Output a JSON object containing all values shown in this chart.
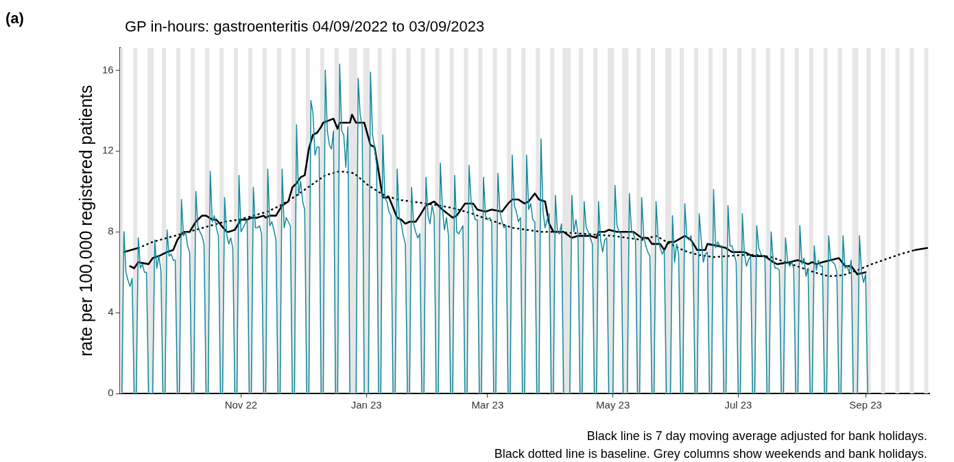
{
  "chart_data": {
    "type": "line",
    "title": "GP in-hours: gastroenteritis 04/09/2022 to 03/09/2023",
    "ylabel": "rate per 100,000 registered patients",
    "annotations": [
      "(a)",
      "Black line is 7 day moving average adjusted for bank holidays.",
      "Black dotted line is baseline. Grey columns show weekends and bank holidays."
    ],
    "xlim": [
      "2022-09-03",
      "2023-10-02"
    ],
    "xticks": [
      {
        "value": "2022-11-01",
        "label": "Nov 22"
      },
      {
        "value": "2023-01-01",
        "label": "Jan 23"
      },
      {
        "value": "2023-03-01",
        "label": "Mar 23"
      },
      {
        "value": "2023-05-01",
        "label": "May 23"
      },
      {
        "value": "2023-07-01",
        "label": "Jul 23"
      },
      {
        "value": "2023-09-01",
        "label": "Sep 23"
      }
    ],
    "ylim": [
      0,
      17.1
    ],
    "yticks": [
      0,
      4,
      8,
      12,
      16
    ],
    "grid": false,
    "legend": false,
    "marker": "none",
    "bands": [
      {
        "axis": "x",
        "from": "2022-09-03",
        "to": "2022-09-04",
        "color": "#e6e6e6"
      },
      {
        "axis": "x",
        "from": "2022-09-10",
        "to": "2022-09-11",
        "color": "#e6e6e6"
      },
      {
        "axis": "x",
        "from": "2022-09-17",
        "to": "2022-09-19",
        "color": "#e6e6e6"
      },
      {
        "axis": "x",
        "from": "2022-09-24",
        "to": "2022-09-25",
        "color": "#e6e6e6"
      },
      {
        "axis": "x",
        "from": "2022-10-01",
        "to": "2022-10-02",
        "color": "#e6e6e6"
      },
      {
        "axis": "x",
        "from": "2022-10-08",
        "to": "2022-10-09",
        "color": "#e6e6e6"
      },
      {
        "axis": "x",
        "from": "2022-10-15",
        "to": "2022-10-16",
        "color": "#e6e6e6"
      },
      {
        "axis": "x",
        "from": "2022-10-22",
        "to": "2022-10-23",
        "color": "#e6e6e6"
      },
      {
        "axis": "x",
        "from": "2022-10-29",
        "to": "2022-10-30",
        "color": "#e6e6e6"
      },
      {
        "axis": "x",
        "from": "2022-11-05",
        "to": "2022-11-06",
        "color": "#e6e6e6"
      },
      {
        "axis": "x",
        "from": "2022-11-12",
        "to": "2022-11-13",
        "color": "#e6e6e6"
      },
      {
        "axis": "x",
        "from": "2022-11-19",
        "to": "2022-11-20",
        "color": "#e6e6e6"
      },
      {
        "axis": "x",
        "from": "2022-11-26",
        "to": "2022-11-27",
        "color": "#e6e6e6"
      },
      {
        "axis": "x",
        "from": "2022-12-03",
        "to": "2022-12-04",
        "color": "#e6e6e6"
      },
      {
        "axis": "x",
        "from": "2022-12-10",
        "to": "2022-12-11",
        "color": "#e6e6e6"
      },
      {
        "axis": "x",
        "from": "2022-12-17",
        "to": "2022-12-18",
        "color": "#e6e6e6"
      },
      {
        "axis": "x",
        "from": "2022-12-24",
        "to": "2022-12-27",
        "color": "#e6e6e6"
      },
      {
        "axis": "x",
        "from": "2022-12-31",
        "to": "2023-01-02",
        "color": "#e6e6e6"
      },
      {
        "axis": "x",
        "from": "2023-01-07",
        "to": "2023-01-08",
        "color": "#e6e6e6"
      },
      {
        "axis": "x",
        "from": "2023-01-14",
        "to": "2023-01-15",
        "color": "#e6e6e6"
      },
      {
        "axis": "x",
        "from": "2023-01-21",
        "to": "2023-01-22",
        "color": "#e6e6e6"
      },
      {
        "axis": "x",
        "from": "2023-01-28",
        "to": "2023-01-29",
        "color": "#e6e6e6"
      },
      {
        "axis": "x",
        "from": "2023-02-04",
        "to": "2023-02-05",
        "color": "#e6e6e6"
      },
      {
        "axis": "x",
        "from": "2023-02-11",
        "to": "2023-02-12",
        "color": "#e6e6e6"
      },
      {
        "axis": "x",
        "from": "2023-02-18",
        "to": "2023-02-19",
        "color": "#e6e6e6"
      },
      {
        "axis": "x",
        "from": "2023-02-25",
        "to": "2023-02-26",
        "color": "#e6e6e6"
      },
      {
        "axis": "x",
        "from": "2023-03-04",
        "to": "2023-03-05",
        "color": "#e6e6e6"
      },
      {
        "axis": "x",
        "from": "2023-03-11",
        "to": "2023-03-12",
        "color": "#e6e6e6"
      },
      {
        "axis": "x",
        "from": "2023-03-18",
        "to": "2023-03-19",
        "color": "#e6e6e6"
      },
      {
        "axis": "x",
        "from": "2023-03-25",
        "to": "2023-03-26",
        "color": "#e6e6e6"
      },
      {
        "axis": "x",
        "from": "2023-04-01",
        "to": "2023-04-02",
        "color": "#e6e6e6"
      },
      {
        "axis": "x",
        "from": "2023-04-07",
        "to": "2023-04-10",
        "color": "#e6e6e6"
      },
      {
        "axis": "x",
        "from": "2023-04-15",
        "to": "2023-04-16",
        "color": "#e6e6e6"
      },
      {
        "axis": "x",
        "from": "2023-04-22",
        "to": "2023-04-23",
        "color": "#e6e6e6"
      },
      {
        "axis": "x",
        "from": "2023-04-29",
        "to": "2023-05-01",
        "color": "#e6e6e6"
      },
      {
        "axis": "x",
        "from": "2023-05-06",
        "to": "2023-05-08",
        "color": "#e6e6e6"
      },
      {
        "axis": "x",
        "from": "2023-05-13",
        "to": "2023-05-14",
        "color": "#e6e6e6"
      },
      {
        "axis": "x",
        "from": "2023-05-20",
        "to": "2023-05-21",
        "color": "#e6e6e6"
      },
      {
        "axis": "x",
        "from": "2023-05-27",
        "to": "2023-05-29",
        "color": "#e6e6e6"
      },
      {
        "axis": "x",
        "from": "2023-06-03",
        "to": "2023-06-04",
        "color": "#e6e6e6"
      },
      {
        "axis": "x",
        "from": "2023-06-10",
        "to": "2023-06-11",
        "color": "#e6e6e6"
      },
      {
        "axis": "x",
        "from": "2023-06-17",
        "to": "2023-06-18",
        "color": "#e6e6e6"
      },
      {
        "axis": "x",
        "from": "2023-06-24",
        "to": "2023-06-25",
        "color": "#e6e6e6"
      },
      {
        "axis": "x",
        "from": "2023-07-01",
        "to": "2023-07-02",
        "color": "#e6e6e6"
      },
      {
        "axis": "x",
        "from": "2023-07-08",
        "to": "2023-07-09",
        "color": "#e6e6e6"
      },
      {
        "axis": "x",
        "from": "2023-07-15",
        "to": "2023-07-16",
        "color": "#e6e6e6"
      },
      {
        "axis": "x",
        "from": "2023-07-22",
        "to": "2023-07-23",
        "color": "#e6e6e6"
      },
      {
        "axis": "x",
        "from": "2023-07-29",
        "to": "2023-07-30",
        "color": "#e6e6e6"
      },
      {
        "axis": "x",
        "from": "2023-08-05",
        "to": "2023-08-06",
        "color": "#e6e6e6"
      },
      {
        "axis": "x",
        "from": "2023-08-12",
        "to": "2023-08-13",
        "color": "#e6e6e6"
      },
      {
        "axis": "x",
        "from": "2023-08-19",
        "to": "2023-08-20",
        "color": "#e6e6e6"
      },
      {
        "axis": "x",
        "from": "2023-08-26",
        "to": "2023-08-28",
        "color": "#e6e6e6"
      },
      {
        "axis": "x",
        "from": "2023-09-02",
        "to": "2023-09-03",
        "color": "#e6e6e6"
      },
      {
        "axis": "x",
        "from": "2023-09-09",
        "to": "2023-09-10",
        "color": "#e6e6e6"
      },
      {
        "axis": "x",
        "from": "2023-09-16",
        "to": "2023-09-17",
        "color": "#e6e6e6"
      },
      {
        "axis": "x",
        "from": "2023-09-23",
        "to": "2023-09-24",
        "color": "#e6e6e6"
      },
      {
        "axis": "x",
        "from": "2023-09-30",
        "to": "2023-10-01",
        "color": "#e6e6e6"
      }
    ],
    "series": [
      {
        "type": "line",
        "color": "#11879c",
        "line_style": "solid",
        "x": [
          "2022-09-04",
          "2022-09-05",
          "2022-09-06",
          "2022-09-07",
          "2022-09-08",
          "2022-09-09",
          "2022-09-10",
          "2022-09-11",
          "2022-09-12",
          "2022-09-13",
          "2022-09-14",
          "2022-09-15",
          "2022-09-16",
          "2022-09-17",
          "2022-09-18",
          "2022-09-19",
          "2022-09-20",
          "2022-09-21",
          "2022-09-22",
          "2022-09-23",
          "2022-09-24",
          "2022-09-25",
          "2022-09-26",
          "2022-09-27",
          "2022-09-28",
          "2022-09-29",
          "2022-09-30",
          "2022-10-01",
          "2022-10-02",
          "2022-10-03",
          "2022-10-04",
          "2022-10-05",
          "2022-10-06",
          "2022-10-07",
          "2022-10-08",
          "2022-10-09",
          "2022-10-10",
          "2022-10-11",
          "2022-10-12",
          "2022-10-13",
          "2022-10-14",
          "2022-10-15",
          "2022-10-16",
          "2022-10-17",
          "2022-10-18",
          "2022-10-19",
          "2022-10-20",
          "2022-10-21",
          "2022-10-22",
          "2022-10-23",
          "2022-10-24",
          "2022-10-25",
          "2022-10-26",
          "2022-10-27",
          "2022-10-28",
          "2022-10-29",
          "2022-10-30",
          "2022-10-31",
          "2022-11-01",
          "2022-11-02",
          "2022-11-03",
          "2022-11-04",
          "2022-11-05",
          "2022-11-06",
          "2022-11-07",
          "2022-11-08",
          "2022-11-09",
          "2022-11-10",
          "2022-11-11",
          "2022-11-12",
          "2022-11-13",
          "2022-11-14",
          "2022-11-15",
          "2022-11-16",
          "2022-11-17",
          "2022-11-18",
          "2022-11-19",
          "2022-11-20",
          "2022-11-21",
          "2022-11-22",
          "2022-11-23",
          "2022-11-24",
          "2022-11-25",
          "2022-11-26",
          "2022-11-27",
          "2022-11-28",
          "2022-11-29",
          "2022-11-30",
          "2022-12-01",
          "2022-12-02",
          "2022-12-03",
          "2022-12-04",
          "2022-12-05",
          "2022-12-06",
          "2022-12-07",
          "2022-12-08",
          "2022-12-09",
          "2022-12-10",
          "2022-12-11",
          "2022-12-12",
          "2022-12-13",
          "2022-12-14",
          "2022-12-15",
          "2022-12-16",
          "2022-12-17",
          "2022-12-18",
          "2022-12-19",
          "2022-12-20",
          "2022-12-21",
          "2022-12-22",
          "2022-12-23",
          "2022-12-24",
          "2022-12-25",
          "2022-12-26",
          "2022-12-27",
          "2022-12-28",
          "2022-12-29",
          "2022-12-30",
          "2022-12-31",
          "2023-01-01",
          "2023-01-02",
          "2023-01-03",
          "2023-01-04",
          "2023-01-05",
          "2023-01-06",
          "2023-01-07",
          "2023-01-08",
          "2023-01-09",
          "2023-01-10",
          "2023-01-11",
          "2023-01-12",
          "2023-01-13",
          "2023-01-14",
          "2023-01-15",
          "2023-01-16",
          "2023-01-17",
          "2023-01-18",
          "2023-01-19",
          "2023-01-20",
          "2023-01-21",
          "2023-01-22",
          "2023-01-23",
          "2023-01-24",
          "2023-01-25",
          "2023-01-26",
          "2023-01-27",
          "2023-01-28",
          "2023-01-29",
          "2023-01-30",
          "2023-01-31",
          "2023-02-01",
          "2023-02-02",
          "2023-02-03",
          "2023-02-04",
          "2023-02-05",
          "2023-02-06",
          "2023-02-07",
          "2023-02-08",
          "2023-02-09",
          "2023-02-10",
          "2023-02-11",
          "2023-02-12",
          "2023-02-13",
          "2023-02-14",
          "2023-02-15",
          "2023-02-16",
          "2023-02-17",
          "2023-02-18",
          "2023-02-19",
          "2023-02-20",
          "2023-02-21",
          "2023-02-22",
          "2023-02-23",
          "2023-02-24",
          "2023-02-25",
          "2023-02-26",
          "2023-02-27",
          "2023-02-28",
          "2023-03-01",
          "2023-03-02",
          "2023-03-03",
          "2023-03-04",
          "2023-03-05",
          "2023-03-06",
          "2023-03-07",
          "2023-03-08",
          "2023-03-09",
          "2023-03-10",
          "2023-03-11",
          "2023-03-12",
          "2023-03-13",
          "2023-03-14",
          "2023-03-15",
          "2023-03-16",
          "2023-03-17",
          "2023-03-18",
          "2023-03-19",
          "2023-03-20",
          "2023-03-21",
          "2023-03-22",
          "2023-03-23",
          "2023-03-24",
          "2023-03-25",
          "2023-03-26",
          "2023-03-27",
          "2023-03-28",
          "2023-03-29",
          "2023-03-30",
          "2023-03-31",
          "2023-04-01",
          "2023-04-02",
          "2023-04-03",
          "2023-04-04",
          "2023-04-05",
          "2023-04-06",
          "2023-04-07",
          "2023-04-08",
          "2023-04-09",
          "2023-04-10",
          "2023-04-11",
          "2023-04-12",
          "2023-04-13",
          "2023-04-14",
          "2023-04-15",
          "2023-04-16",
          "2023-04-17",
          "2023-04-18",
          "2023-04-19",
          "2023-04-20",
          "2023-04-21",
          "2023-04-22",
          "2023-04-23",
          "2023-04-24",
          "2023-04-25",
          "2023-04-26",
          "2023-04-27",
          "2023-04-28",
          "2023-04-29",
          "2023-04-30",
          "2023-05-01",
          "2023-05-02",
          "2023-05-03",
          "2023-05-04",
          "2023-05-05",
          "2023-05-06",
          "2023-05-07",
          "2023-05-08",
          "2023-05-09",
          "2023-05-10",
          "2023-05-11",
          "2023-05-12",
          "2023-05-13",
          "2023-05-14",
          "2023-05-15",
          "2023-05-16",
          "2023-05-17",
          "2023-05-18",
          "2023-05-19",
          "2023-05-20",
          "2023-05-21",
          "2023-05-22",
          "2023-05-23",
          "2023-05-24",
          "2023-05-25",
          "2023-05-26",
          "2023-05-27",
          "2023-05-28",
          "2023-05-29",
          "2023-05-30",
          "2023-05-31",
          "2023-06-01",
          "2023-06-02",
          "2023-06-03",
          "2023-06-04",
          "2023-06-05",
          "2023-06-06",
          "2023-06-07",
          "2023-06-08",
          "2023-06-09",
          "2023-06-10",
          "2023-06-11",
          "2023-06-12",
          "2023-06-13",
          "2023-06-14",
          "2023-06-15",
          "2023-06-16",
          "2023-06-17",
          "2023-06-18",
          "2023-06-19",
          "2023-06-20",
          "2023-06-21",
          "2023-06-22",
          "2023-06-23",
          "2023-06-24",
          "2023-06-25",
          "2023-06-26",
          "2023-06-27",
          "2023-06-28",
          "2023-06-29",
          "2023-06-30",
          "2023-07-01",
          "2023-07-02",
          "2023-07-03",
          "2023-07-04",
          "2023-07-05",
          "2023-07-06",
          "2023-07-07",
          "2023-07-08",
          "2023-07-09",
          "2023-07-10",
          "2023-07-11",
          "2023-07-12",
          "2023-07-13",
          "2023-07-14",
          "2023-07-15",
          "2023-07-16",
          "2023-07-17",
          "2023-07-18",
          "2023-07-19",
          "2023-07-20",
          "2023-07-21",
          "2023-07-22",
          "2023-07-23",
          "2023-07-24",
          "2023-07-25",
          "2023-07-26",
          "2023-07-27",
          "2023-07-28",
          "2023-07-29",
          "2023-07-30",
          "2023-07-31",
          "2023-08-01",
          "2023-08-02",
          "2023-08-03",
          "2023-08-04",
          "2023-08-05",
          "2023-08-06",
          "2023-08-07",
          "2023-08-08",
          "2023-08-09",
          "2023-08-10",
          "2023-08-11",
          "2023-08-12",
          "2023-08-13",
          "2023-08-14",
          "2023-08-15",
          "2023-08-16",
          "2023-08-17",
          "2023-08-18",
          "2023-08-19",
          "2023-08-20",
          "2023-08-21",
          "2023-08-22",
          "2023-08-23",
          "2023-08-24",
          "2023-08-25",
          "2023-08-26",
          "2023-08-27",
          "2023-08-28",
          "2023-08-29",
          "2023-08-30",
          "2023-08-31",
          "2023-09-01",
          "2023-09-02",
          "2023-09-03"
        ],
        "values": [
          0,
          8.0,
          6.0,
          5.6,
          5.3,
          5.7,
          0,
          0,
          7.7,
          6.2,
          6.4,
          6.0,
          6.0,
          0,
          0,
          0,
          7.6,
          6.2,
          6.8,
          6.1,
          0,
          0,
          8.1,
          6.8,
          6.9,
          6.6,
          6.6,
          0,
          0,
          9.6,
          7.8,
          8.0,
          7.3,
          7.0,
          0,
          0,
          10.0,
          8.3,
          8.0,
          7.8,
          7.4,
          0,
          0,
          11.0,
          8.5,
          8.8,
          8.2,
          7.8,
          0,
          0,
          9.7,
          7.9,
          7.4,
          7.7,
          7.2,
          0,
          0,
          10.8,
          8.0,
          8.2,
          8.4,
          8.6,
          0,
          0,
          10.2,
          8.2,
          8.2,
          8.3,
          7.9,
          0,
          0,
          11.1,
          8.3,
          8.5,
          8.1,
          7.6,
          0,
          0,
          11.1,
          8.2,
          8.7,
          8.5,
          8.3,
          0,
          0,
          13.3,
          9.8,
          10.5,
          9.5,
          9.1,
          0,
          0,
          14.5,
          13.9,
          11.8,
          12.2,
          12.2,
          0,
          0,
          16.0,
          13.0,
          12.3,
          12.1,
          13.0,
          0,
          0,
          16.3,
          13.0,
          12.8,
          11.2,
          13.2,
          0,
          0,
          0,
          0,
          15.6,
          13.8,
          13.2,
          0,
          0,
          0,
          15.9,
          12.8,
          12.2,
          11.3,
          0,
          0,
          12.8,
          9.7,
          9.5,
          9.0,
          8.8,
          0,
          0,
          11.1,
          8.7,
          8.4,
          7.8,
          7.4,
          0,
          0,
          10.2,
          8.4,
          8.0,
          7.7,
          7.9,
          0,
          0,
          10.7,
          8.8,
          8.4,
          9.3,
          8.8,
          0,
          0,
          11.4,
          9.2,
          8.1,
          8.7,
          7.8,
          0,
          0,
          10.8,
          8.0,
          7.9,
          8.1,
          8.3,
          0,
          0,
          11.3,
          9.5,
          9.0,
          8.6,
          8.6,
          0,
          0,
          10.7,
          8.8,
          8.6,
          8.7,
          8.5,
          0,
          0,
          10.9,
          9.0,
          8.5,
          8.2,
          8.3,
          0,
          0,
          11.8,
          9.3,
          9.0,
          8.5,
          8.7,
          0,
          0,
          11.8,
          9.1,
          9.4,
          8.6,
          8.5,
          0,
          0,
          12.6,
          9.0,
          8.2,
          8.6,
          8.9,
          0,
          0,
          9.8,
          8.0,
          7.9,
          8.4,
          0,
          0,
          0,
          0,
          9.8,
          8.0,
          8.6,
          7.9,
          0,
          0,
          9.5,
          8.2,
          8.0,
          7.7,
          7.4,
          0,
          0,
          9.5,
          7.6,
          7.0,
          7.6,
          7.7,
          0,
          0,
          0,
          10.3,
          8.3,
          8.0,
          7.9,
          0,
          0,
          0,
          9.9,
          8.1,
          7.9,
          7.6,
          0,
          0,
          9.7,
          7.8,
          7.3,
          7.0,
          6.8,
          0,
          0,
          9.5,
          7.7,
          7.2,
          6.9,
          7.1,
          0,
          0,
          0,
          8.8,
          6.5,
          7.4,
          6.9,
          0,
          0,
          9.4,
          7.7,
          7.6,
          7.8,
          7.1,
          0,
          0,
          8.9,
          7.6,
          6.5,
          6.9,
          7.0,
          0,
          0,
          10.1,
          7.2,
          7.5,
          7.3,
          7.3,
          0,
          0,
          9.3,
          7.3,
          7.3,
          6.9,
          6.5,
          0,
          0,
          8.9,
          6.9,
          6.3,
          6.6,
          6.8,
          0,
          0,
          8.3,
          7.2,
          6.9,
          6.8,
          6.7,
          0,
          0,
          8.0,
          6.6,
          6.2,
          6.2,
          6.1,
          0,
          0,
          7.7,
          6.6,
          6.3,
          6.5,
          6.2,
          0,
          0,
          8.3,
          6.4,
          6.7,
          5.8,
          6.2,
          0,
          0,
          7.3,
          6.1,
          6.6,
          6.3,
          6.3,
          0,
          0,
          7.8,
          6.6,
          6.5,
          6.4,
          6.0,
          0,
          0,
          7.8,
          6.2,
          6.3,
          6.0,
          6.6,
          0,
          0,
          0,
          7.8,
          6.0,
          5.5,
          5.9,
          0,
          0
        ]
      },
      {
        "type": "line",
        "color": "#000000",
        "line_style": "solid",
        "x": [
          "2022-09-08",
          "2022-09-10",
          "2022-09-12",
          "2022-09-17",
          "2022-09-19",
          "2022-09-22",
          "2022-09-26",
          "2022-09-29",
          "2022-10-01",
          "2022-10-04",
          "2022-10-07",
          "2022-10-10",
          "2022-10-13",
          "2022-10-15",
          "2022-10-18",
          "2022-10-20",
          "2022-10-25",
          "2022-10-26",
          "2022-10-29",
          "2022-11-01",
          "2022-11-04",
          "2022-11-06",
          "2022-11-09",
          "2022-11-12",
          "2022-11-13",
          "2022-11-15",
          "2022-11-18",
          "2022-11-21",
          "2022-11-24",
          "2022-11-26",
          "2022-11-28",
          "2022-11-30",
          "2022-12-02",
          "2022-12-04",
          "2022-12-06",
          "2022-12-08",
          "2022-12-10",
          "2022-12-11",
          "2022-12-16",
          "2022-12-18",
          "2022-12-19",
          "2022-12-24",
          "2022-12-25",
          "2022-12-27",
          "2022-12-31",
          "2023-01-03",
          "2023-01-05",
          "2023-01-09",
          "2023-01-12",
          "2023-01-16",
          "2023-01-18",
          "2023-01-20",
          "2023-01-22",
          "2023-01-25",
          "2023-01-27",
          "2023-01-30",
          "2023-02-03",
          "2023-02-07",
          "2023-02-12",
          "2023-02-14",
          "2023-02-18",
          "2023-02-22",
          "2023-02-24",
          "2023-02-28",
          "2023-03-03",
          "2023-03-08",
          "2023-03-11",
          "2023-03-13",
          "2023-03-16",
          "2023-03-19",
          "2023-03-21",
          "2023-03-24",
          "2023-03-26",
          "2023-03-29",
          "2023-03-31",
          "2023-04-02",
          "2023-04-07",
          "2023-04-11",
          "2023-04-14",
          "2023-04-20",
          "2023-04-23",
          "2023-04-24",
          "2023-04-27",
          "2023-04-29",
          "2023-05-03",
          "2023-05-07",
          "2023-05-11",
          "2023-05-15",
          "2023-05-18",
          "2023-05-20",
          "2023-05-24",
          "2023-05-26",
          "2023-05-28",
          "2023-05-31",
          "2023-06-05",
          "2023-06-08",
          "2023-06-11",
          "2023-06-15",
          "2023-06-16",
          "2023-06-21",
          "2023-06-25",
          "2023-06-28",
          "2023-07-04",
          "2023-07-08",
          "2023-07-14",
          "2023-07-18",
          "2023-07-20",
          "2023-07-26",
          "2023-07-30",
          "2023-08-04",
          "2023-08-06",
          "2023-08-08",
          "2023-08-11",
          "2023-08-15",
          "2023-08-19",
          "2023-08-22",
          "2023-08-25",
          "2023-08-28",
          "2023-09-01"
        ],
        "values": [
          6.3,
          6.2,
          6.5,
          6.4,
          6.7,
          6.8,
          7.0,
          7.1,
          7.6,
          8.0,
          8.0,
          8.5,
          8.8,
          8.8,
          8.6,
          8.6,
          8.0,
          8.0,
          8.1,
          8.6,
          8.6,
          8.7,
          8.7,
          8.8,
          8.7,
          8.8,
          8.8,
          9.3,
          9.5,
          10.2,
          10.4,
          10.7,
          10.8,
          12.1,
          12.8,
          12.9,
          13.2,
          13.4,
          13.6,
          13.1,
          13.4,
          13.4,
          13.8,
          13.4,
          13.4,
          12.3,
          12.2,
          9.7,
          9.7,
          8.7,
          8.6,
          8.4,
          8.5,
          8.5,
          8.8,
          9.3,
          9.5,
          9.1,
          8.7,
          8.8,
          9.4,
          9.4,
          9.1,
          9.0,
          9.1,
          9.0,
          9.4,
          9.6,
          9.6,
          9.4,
          9.5,
          9.9,
          9.6,
          9.5,
          8.4,
          8.0,
          8.0,
          7.7,
          7.8,
          7.8,
          7.7,
          8.0,
          8.0,
          8.1,
          8.0,
          8.0,
          8.0,
          7.7,
          7.7,
          7.4,
          7.4,
          7.1,
          7.5,
          7.5,
          7.8,
          7.6,
          7.1,
          7.1,
          7.4,
          7.3,
          7.2,
          7.0,
          7.0,
          6.8,
          6.8,
          6.5,
          6.4,
          6.5,
          6.6,
          6.4,
          6.5,
          6.4,
          6.5,
          6.6,
          6.7,
          6.3,
          6.3,
          5.9,
          6.0
        ]
      },
      {
        "type": "line",
        "color": "#000000",
        "line_style": "dotted",
        "x": [
          "2022-09-05",
          "2022-09-12",
          "2022-09-19",
          "2022-09-26",
          "2022-10-03",
          "2022-10-10",
          "2022-10-17",
          "2022-10-24",
          "2022-10-31",
          "2022-11-07",
          "2022-11-14",
          "2022-11-21",
          "2022-11-28",
          "2022-12-05",
          "2022-12-12",
          "2022-12-19",
          "2022-12-26",
          "2023-01-02",
          "2023-01-09",
          "2023-01-16",
          "2023-01-23",
          "2023-01-30",
          "2023-02-06",
          "2023-02-13",
          "2023-02-20",
          "2023-02-27",
          "2023-03-06",
          "2023-03-13",
          "2023-03-20",
          "2023-03-27",
          "2023-04-03",
          "2023-04-10",
          "2023-04-17",
          "2023-04-24",
          "2023-05-01",
          "2023-05-08",
          "2023-05-15",
          "2023-05-22",
          "2023-05-29",
          "2023-06-05",
          "2023-06-12",
          "2023-06-19",
          "2023-06-26",
          "2023-07-03",
          "2023-07-10",
          "2023-07-17",
          "2023-07-24",
          "2023-07-31",
          "2023-08-07",
          "2023-08-14",
          "2023-08-21",
          "2023-08-28",
          "2023-09-04",
          "2023-09-11",
          "2023-09-18",
          "2023-09-25",
          "2023-10-01"
        ],
        "values": [
          7.0,
          7.2,
          7.5,
          7.7,
          7.9,
          8.1,
          8.3,
          8.5,
          8.6,
          8.8,
          9.0,
          9.35,
          9.8,
          10.3,
          10.8,
          11.0,
          10.9,
          10.3,
          9.85,
          9.6,
          9.5,
          9.4,
          9.3,
          9.15,
          8.95,
          8.7,
          8.45,
          8.2,
          8.1,
          8.0,
          8.0,
          7.95,
          7.9,
          7.85,
          7.8,
          7.7,
          7.6,
          7.8,
          7.4,
          7.05,
          6.85,
          6.75,
          6.8,
          6.85,
          6.85,
          6.75,
          6.5,
          6.25,
          6.0,
          5.8,
          5.85,
          6.1,
          6.4,
          6.65,
          6.9,
          7.1,
          7.2
        ]
      }
    ]
  }
}
